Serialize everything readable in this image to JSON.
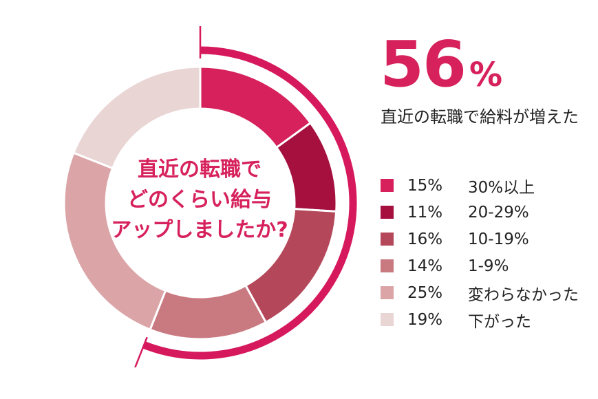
{
  "chart_data": {
    "type": "donut",
    "center_title_lines": [
      "直近の転職で",
      "どのくらい給与",
      "アップしましたか?"
    ],
    "highlight": {
      "value": "56",
      "unit": "%",
      "caption": "直近の転職で給料が増えた"
    },
    "series": [
      {
        "label": "30%以上",
        "value": 15,
        "value_label": "15%",
        "color": "#d6215c"
      },
      {
        "label": "20-29%",
        "value": 11,
        "value_label": "11%",
        "color": "#a5103f"
      },
      {
        "label": "10-19%",
        "value": 16,
        "value_label": "16%",
        "color": "#b4485a"
      },
      {
        "label": "1-9%",
        "value": 14,
        "value_label": "14%",
        "color": "#c97a80"
      },
      {
        "label": "変わらなかった",
        "value": 25,
        "value_label": "25%",
        "color": "#dba5a8"
      },
      {
        "label": "下がった",
        "value": 19,
        "value_label": "19%",
        "color": "#ead5d5"
      }
    ],
    "highlight_arc_color": "#d6195c"
  }
}
